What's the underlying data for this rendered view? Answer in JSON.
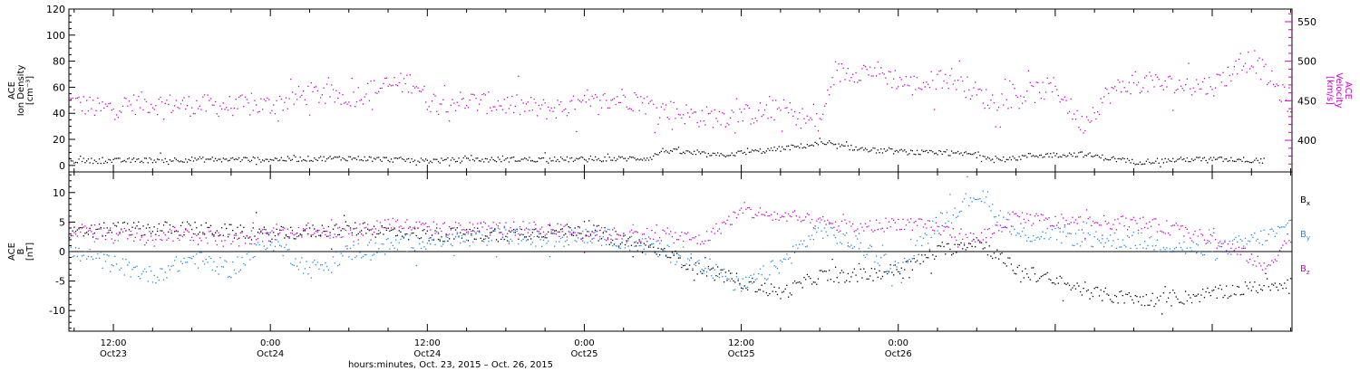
{
  "colors": {
    "black": "#000000",
    "magenta": "#cc00cc",
    "blue": "#1e88e5"
  },
  "chart_data": [
    {
      "type": "scatter",
      "left_axis": {
        "label_lines": [
          "ACE",
          "Ion Density",
          "[cm⁻³]"
        ],
        "ylim": [
          -5,
          120
        ],
        "ticks": [
          0,
          20,
          40,
          60,
          80,
          100,
          120
        ],
        "color": "#000000"
      },
      "right_axis": {
        "label_lines": [
          "ACE",
          "Velocity",
          "[km/s]"
        ],
        "ylim": [
          360,
          566
        ],
        "ticks": [
          400,
          450,
          500,
          550
        ],
        "color": "#cc00cc"
      },
      "x_hours_range": [
        -3.4,
        90.1
      ],
      "series": [
        {
          "axis": "left",
          "color": "#000000",
          "points": [
            [
              -3.4,
              4
            ],
            [
              0,
              4
            ],
            [
              6,
              5
            ],
            [
              12,
              5
            ],
            [
              18,
              6
            ],
            [
              24,
              4
            ],
            [
              30,
              5
            ],
            [
              36,
              5
            ],
            [
              41,
              6
            ],
            [
              42,
              12
            ],
            [
              46,
              8
            ],
            [
              50,
              12
            ],
            [
              54,
              17
            ],
            [
              58,
              12
            ],
            [
              62,
              10
            ],
            [
              66,
              9
            ],
            [
              68,
              4
            ],
            [
              70,
              8
            ],
            [
              74,
              9
            ],
            [
              78,
              3
            ],
            [
              82,
              5
            ],
            [
              86,
              5
            ],
            [
              88,
              4
            ]
          ]
        },
        {
          "axis": "right",
          "color": "#cc00cc",
          "points": [
            [
              -3.4,
              450
            ],
            [
              -1,
              440
            ],
            [
              2,
              448
            ],
            [
              6,
              445
            ],
            [
              9,
              444
            ],
            [
              12,
              445
            ],
            [
              15,
              460
            ],
            [
              18,
              455
            ],
            [
              21,
              470
            ],
            [
              23,
              475
            ],
            [
              24,
              450
            ],
            [
              27,
              450
            ],
            [
              30,
              446
            ],
            [
              33,
              440
            ],
            [
              36,
              445
            ],
            [
              39,
              455
            ],
            [
              42,
              440
            ],
            [
              45,
              430
            ],
            [
              48,
              432
            ],
            [
              51,
              440
            ],
            [
              54,
              420
            ],
            [
              55,
              485
            ],
            [
              58,
              490
            ],
            [
              61,
              470
            ],
            [
              64,
              480
            ],
            [
              67,
              450
            ],
            [
              70,
              460
            ],
            [
              72,
              468
            ],
            [
              74,
              420
            ],
            [
              76,
              460
            ],
            [
              78,
              475
            ],
            [
              81,
              470
            ],
            [
              84,
              470
            ],
            [
              87,
              505
            ],
            [
              90,
              445
            ]
          ]
        }
      ]
    },
    {
      "type": "scatter",
      "left_axis": {
        "label_lines": [
          "ACE",
          "B",
          "[nT]"
        ],
        "ylim": [
          -13.5,
          13.5
        ],
        "ticks": [
          -10,
          -5,
          0,
          5,
          10
        ]
      },
      "zero_line": true,
      "legend": [
        "B",
        "B",
        "B"
      ],
      "legend_subscripts": [
        "x",
        "y",
        "z"
      ],
      "x_hours_range": [
        -3.4,
        90.1
      ],
      "series": [
        {
          "legend_index": 0,
          "color": "#000000",
          "points": [
            [
              -3.4,
              3
            ],
            [
              0,
              4
            ],
            [
              6,
              4
            ],
            [
              12,
              3
            ],
            [
              18,
              4
            ],
            [
              24,
              3
            ],
            [
              30,
              3
            ],
            [
              36,
              4
            ],
            [
              39,
              2
            ],
            [
              42,
              0
            ],
            [
              45,
              -3
            ],
            [
              48,
              -5
            ],
            [
              51,
              -7
            ],
            [
              54,
              -4
            ],
            [
              57,
              -4
            ],
            [
              60,
              -3
            ],
            [
              63,
              0
            ],
            [
              66,
              2
            ],
            [
              69,
              -3
            ],
            [
              72,
              -5
            ],
            [
              75,
              -7
            ],
            [
              78,
              -8
            ],
            [
              81,
              -8
            ],
            [
              84,
              -7
            ],
            [
              87,
              -6
            ],
            [
              90,
              -5
            ]
          ]
        },
        {
          "legend_index": 1,
          "color": "#1e88e5",
          "points": [
            [
              -3.4,
              0
            ],
            [
              0,
              -2
            ],
            [
              3,
              -4
            ],
            [
              6,
              -1
            ],
            [
              9,
              -3
            ],
            [
              12,
              2
            ],
            [
              15,
              -3
            ],
            [
              18,
              0
            ],
            [
              21,
              1
            ],
            [
              24,
              2
            ],
            [
              27,
              2
            ],
            [
              30,
              3
            ],
            [
              33,
              2
            ],
            [
              36,
              3
            ],
            [
              39,
              2
            ],
            [
              42,
              0
            ],
            [
              45,
              -2
            ],
            [
              48,
              -6
            ],
            [
              51,
              -2
            ],
            [
              54,
              4
            ],
            [
              57,
              1
            ],
            [
              60,
              -3
            ],
            [
              63,
              5
            ],
            [
              66,
              10
            ],
            [
              69,
              3
            ],
            [
              72,
              3
            ],
            [
              75,
              2
            ],
            [
              78,
              2
            ],
            [
              81,
              1
            ],
            [
              84,
              0
            ],
            [
              87,
              2
            ],
            [
              90,
              4
            ]
          ]
        },
        {
          "legend_index": 2,
          "color": "#cc00cc",
          "points": [
            [
              -3.4,
              4
            ],
            [
              0,
              3
            ],
            [
              3,
              3
            ],
            [
              6,
              3
            ],
            [
              9,
              2
            ],
            [
              12,
              3
            ],
            [
              15,
              4
            ],
            [
              18,
              3
            ],
            [
              21,
              5
            ],
            [
              24,
              4
            ],
            [
              27,
              4
            ],
            [
              30,
              4
            ],
            [
              33,
              4
            ],
            [
              36,
              3
            ],
            [
              39,
              3
            ],
            [
              42,
              3
            ],
            [
              45,
              2
            ],
            [
              48,
              7
            ],
            [
              51,
              6
            ],
            [
              54,
              5
            ],
            [
              57,
              4
            ],
            [
              60,
              5
            ],
            [
              63,
              4
            ],
            [
              66,
              2
            ],
            [
              69,
              6
            ],
            [
              72,
              5
            ],
            [
              75,
              5
            ],
            [
              78,
              5
            ],
            [
              81,
              4
            ],
            [
              84,
              2
            ],
            [
              87,
              -1
            ],
            [
              88,
              -3
            ],
            [
              90,
              3
            ]
          ]
        }
      ]
    }
  ],
  "x_axis": {
    "tick_labels": [
      {
        "hour": 0,
        "time": "12:00",
        "date": "Oct23"
      },
      {
        "hour": 12,
        "time": "0:00",
        "date": "Oct24"
      },
      {
        "hour": 24,
        "time": "12:00",
        "date": "Oct24"
      },
      {
        "hour": 36,
        "time": "0:00",
        "date": "Oct25"
      },
      {
        "hour": 48,
        "time": "12:00",
        "date": "Oct25"
      },
      {
        "hour": 60,
        "time": "0:00",
        "date": "Oct26"
      }
    ],
    "label": "hours:minutes, Oct. 23, 2015 – Oct. 26, 2015"
  }
}
